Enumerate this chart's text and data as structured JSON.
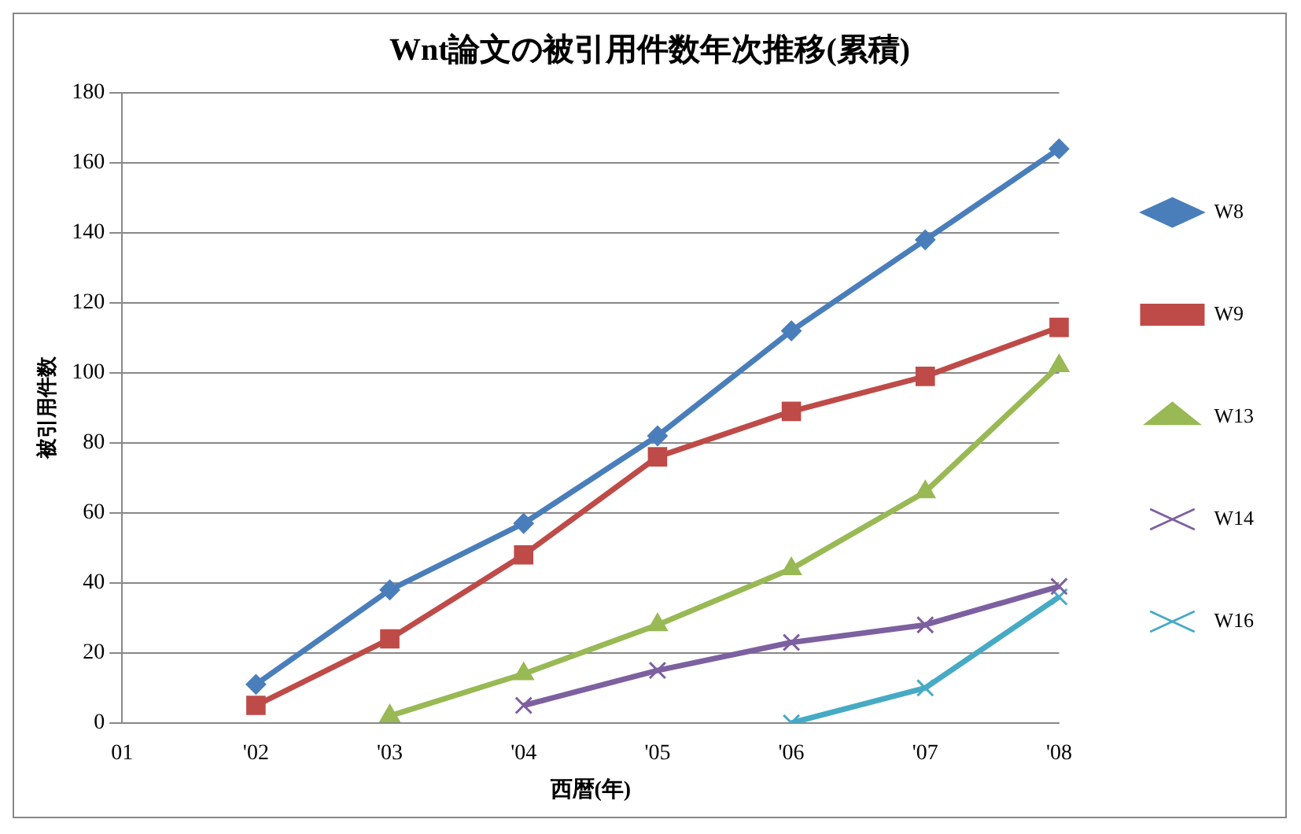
{
  "chart_data": {
    "type": "line",
    "title": "Wnt論文の被引用件数年次推移(累積)",
    "xlabel": "西暦(年)",
    "ylabel": "被引用件数",
    "categories": [
      "01",
      "'02",
      "'03",
      "'04",
      "'05",
      "'06",
      "'07",
      "'08"
    ],
    "series": [
      {
        "name": "W8",
        "color": "#4a7ebb",
        "marker": "diamond",
        "values": [
          null,
          11,
          38,
          57,
          82,
          112,
          138,
          164
        ]
      },
      {
        "name": "W9",
        "color": "#be4b48",
        "marker": "square",
        "values": [
          null,
          5,
          24,
          48,
          76,
          89,
          99,
          113
        ]
      },
      {
        "name": "W13",
        "color": "#98b954",
        "marker": "triangle",
        "values": [
          null,
          null,
          2,
          14,
          28,
          44,
          66,
          102
        ]
      },
      {
        "name": "W14",
        "color": "#7d60a0",
        "marker": "cross",
        "values": [
          null,
          null,
          null,
          5,
          15,
          23,
          28,
          39
        ]
      },
      {
        "name": "W16",
        "color": "#46aac5",
        "marker": "cross",
        "values": [
          null,
          null,
          null,
          null,
          null,
          0,
          10,
          36
        ]
      }
    ],
    "ylim": [
      0,
      180
    ],
    "yticks": [
      0,
      20,
      40,
      60,
      80,
      100,
      120,
      140,
      160,
      180
    ],
    "grid": "y",
    "legend": "right",
    "line_style": "solid"
  }
}
